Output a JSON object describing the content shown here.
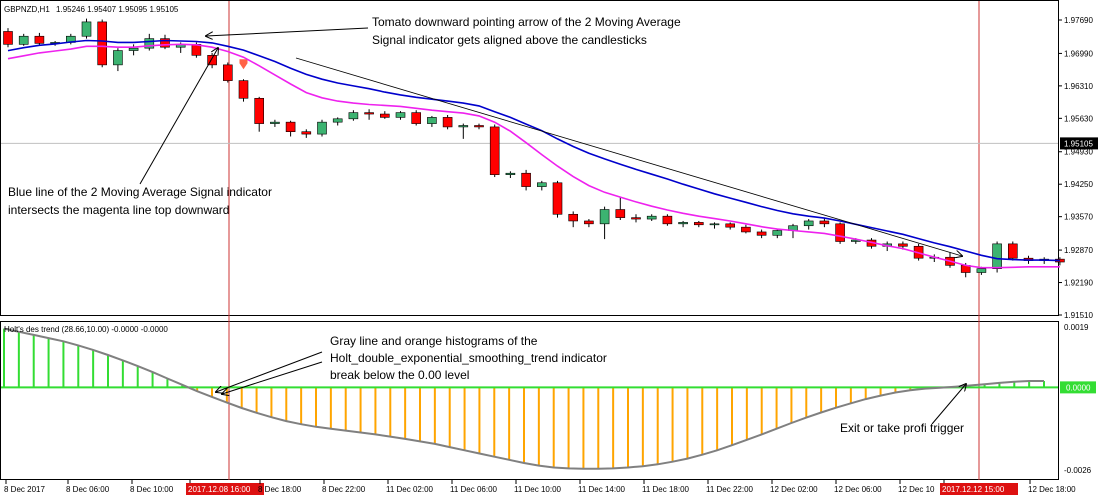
{
  "main_chart": {
    "symbol": "GBPNZD,H1",
    "ohlc_header": "1.95246 1.95407 1.95095 1.95105",
    "price_ticks": [
      "1.97690",
      "1.96990",
      "1.96310",
      "1.95630",
      "1.94930",
      "1.94250",
      "1.93570",
      "1.92870",
      "1.92190",
      "1.91510"
    ],
    "current_price": "1.95105",
    "colors": {
      "bull": "#3cb371",
      "bear": "#ff0000",
      "blue_ma": "#0000cc",
      "magenta_ma": "#ee22ee",
      "arrow": "#ff6347"
    }
  },
  "sub_chart": {
    "name": "Holt's des trend (28.66,10.00) -0.0000 -0.0000",
    "value_ticks": [
      "0.0019",
      "0.0000",
      "-0.0026"
    ],
    "colors": {
      "gray_line": "#808080",
      "positive_hist": "#33dd33",
      "negative_hist": "#ffa500",
      "zero_line": "#33dd33"
    }
  },
  "time_axis": {
    "labels": [
      "8 Dec 2017",
      "8 Dec 06:00",
      "8 Dec 10:00",
      "2017.12.08 16:00",
      "8 Dec 18:00",
      "8 Dec 22:00",
      "11 Dec 02:00",
      "11 Dec 06:00",
      "11 Dec 10:00",
      "11 Dec 14:00",
      "11 Dec 18:00",
      "11 Dec 22:00",
      "12 Dec 02:00",
      "12 Dec 06:00",
      "12 Dec 10",
      "2017.12.12 15:00",
      "12 Dec 18:00"
    ],
    "highlighted": [
      "2017.12.08 16:00",
      "2017.12.12 15:00"
    ]
  },
  "annotations": [
    {
      "lines": [
        "Tomato downward pointing arrow of the 2 Moving Average",
        "Signal indicator gets aligned above the candlesticks"
      ]
    },
    {
      "lines": [
        "Blue line of the 2 Moving Average Signal indicator",
        "intersects the magenta line top downward"
      ]
    },
    {
      "lines": [
        "Gray line and orange histograms of the",
        "Holt_double_exponential_smoothing_trend indicator",
        "break below the 0.00 level"
      ]
    },
    {
      "lines": [
        "Exit or take profi trigger"
      ]
    }
  ],
  "chart_data": [
    {
      "type": "candlestick",
      "title": "GBPNZD,H1",
      "ylim": [
        1.9151,
        1.9769
      ],
      "series": [
        {
          "name": "candles",
          "values": [
            [
              1.9745,
              1.9752,
              1.9712,
              1.9718
            ],
            [
              1.9718,
              1.974,
              1.9715,
              1.9735
            ],
            [
              1.9735,
              1.9742,
              1.9715,
              1.972
            ],
            [
              1.972,
              1.9725,
              1.9715,
              1.9722
            ],
            [
              1.9722,
              1.974,
              1.9718,
              1.9735
            ],
            [
              1.9735,
              1.9772,
              1.973,
              1.9765
            ],
            [
              1.9765,
              1.977,
              1.967,
              1.9675
            ],
            [
              1.9675,
              1.971,
              1.9662,
              1.9705
            ],
            [
              1.9705,
              1.9718,
              1.9695,
              1.971
            ],
            [
              1.971,
              1.974,
              1.9705,
              1.973
            ],
            [
              1.973,
              1.9738,
              1.9708,
              1.9712
            ],
            [
              1.9712,
              1.9722,
              1.97,
              1.9718
            ],
            [
              1.9718,
              1.9722,
              1.969,
              1.9695
            ],
            [
              1.9695,
              1.97,
              1.9668,
              1.9675
            ],
            [
              1.9675,
              1.968,
              1.9638,
              1.9642
            ],
            [
              1.9642,
              1.9645,
              1.9598,
              1.9605
            ],
            [
              1.9605,
              1.9608,
              1.9535,
              1.9552
            ],
            [
              1.9552,
              1.956,
              1.9545,
              1.9555
            ],
            [
              1.9555,
              1.9558,
              1.9525,
              1.9535
            ],
            [
              1.9535,
              1.954,
              1.9522,
              1.953
            ],
            [
              1.953,
              1.956,
              1.9525,
              1.9555
            ],
            [
              1.9555,
              1.9565,
              1.9548,
              1.9562
            ],
            [
              1.9562,
              1.958,
              1.9558,
              1.9575
            ],
            [
              1.9575,
              1.9582,
              1.956,
              1.9572
            ],
            [
              1.9572,
              1.9578,
              1.9562,
              1.9565
            ],
            [
              1.9565,
              1.9578,
              1.956,
              1.9575
            ],
            [
              1.9575,
              1.958,
              1.9548,
              1.9552
            ],
            [
              1.9552,
              1.9568,
              1.9545,
              1.9565
            ],
            [
              1.9565,
              1.957,
              1.954,
              1.9545
            ],
            [
              1.9545,
              1.9552,
              1.952,
              1.9548
            ],
            [
              1.9548,
              1.9552,
              1.954,
              1.9545
            ],
            [
              1.9545,
              1.955,
              1.944,
              1.9445
            ],
            [
              1.9445,
              1.9452,
              1.9438,
              1.9448
            ],
            [
              1.9448,
              1.9455,
              1.9412,
              1.942
            ],
            [
              1.942,
              1.9432,
              1.9412,
              1.9428
            ],
            [
              1.9428,
              1.9432,
              1.9355,
              1.9362
            ],
            [
              1.9362,
              1.9368,
              1.9335,
              1.9348
            ],
            [
              1.9348,
              1.9352,
              1.9335,
              1.9342
            ],
            [
              1.9342,
              1.9378,
              1.931,
              1.9372
            ],
            [
              1.9372,
              1.9398,
              1.935,
              1.9355
            ],
            [
              1.9355,
              1.9362,
              1.9345,
              1.9352
            ],
            [
              1.9352,
              1.9362,
              1.9348,
              1.9358
            ],
            [
              1.9358,
              1.9362,
              1.9338,
              1.9342
            ],
            [
              1.9342,
              1.9348,
              1.9335,
              1.9345
            ],
            [
              1.9345,
              1.9348,
              1.9335,
              1.934
            ],
            [
              1.934,
              1.9345,
              1.9332,
              1.9342
            ],
            [
              1.9342,
              1.9345,
              1.933,
              1.9335
            ],
            [
              1.9335,
              1.934,
              1.9322,
              1.9325
            ],
            [
              1.9325,
              1.933,
              1.9312,
              1.9318
            ],
            [
              1.9318,
              1.9332,
              1.9312,
              1.9328
            ],
            [
              1.9328,
              1.9342,
              1.9312,
              1.9338
            ],
            [
              1.9338,
              1.9352,
              1.933,
              1.9348
            ],
            [
              1.9348,
              1.9355,
              1.9335,
              1.9342
            ],
            [
              1.9342,
              1.9345,
              1.93,
              1.9305
            ],
            [
              1.9305,
              1.9312,
              1.93,
              1.9308
            ],
            [
              1.9308,
              1.9312,
              1.929,
              1.9295
            ],
            [
              1.9295,
              1.9305,
              1.9285,
              1.93
            ],
            [
              1.93,
              1.9305,
              1.9288,
              1.9295
            ],
            [
              1.9295,
              1.93,
              1.9265,
              1.927
            ],
            [
              1.927,
              1.9278,
              1.9262,
              1.9272
            ],
            [
              1.9272,
              1.9282,
              1.925,
              1.9255
            ],
            [
              1.9255,
              1.926,
              1.923,
              1.924
            ],
            [
              1.924,
              1.9252,
              1.9235,
              1.9248
            ],
            [
              1.9248,
              1.9305,
              1.924,
              1.93
            ],
            [
              1.93,
              1.9305,
              1.9265,
              1.927
            ],
            [
              1.927,
              1.9275,
              1.9258,
              1.9265
            ],
            [
              1.9265,
              1.9272,
              1.9258,
              1.9268
            ],
            [
              1.9268,
              1.9272,
              1.9255,
              1.9262
            ]
          ]
        },
        {
          "name": "blue_ma",
          "values": [
            1.9705,
            1.9711,
            1.9716,
            1.9719,
            1.9723,
            1.9726,
            1.9725,
            1.9722,
            1.9722,
            1.9724,
            1.9726,
            1.9725,
            1.9724,
            1.9721,
            1.9714,
            1.9706,
            1.9694,
            1.9682,
            1.9668,
            1.9655,
            1.9645,
            1.9637,
            1.9631,
            1.9625,
            1.9618,
            1.9612,
            1.9607,
            1.9603,
            1.9599,
            1.9595,
            1.9589,
            1.9577,
            1.9565,
            1.9551,
            1.9537,
            1.952,
            1.9504,
            1.949,
            1.9478,
            1.9467,
            1.9456,
            1.9446,
            1.9436,
            1.9425,
            1.9415,
            1.9405,
            1.9396,
            1.9387,
            1.9378,
            1.937,
            1.9363,
            1.9358,
            1.9354,
            1.9348,
            1.9341,
            1.9334,
            1.9327,
            1.932,
            1.9311,
            1.9302,
            1.9294,
            1.9285,
            1.9276,
            1.9269,
            1.9267,
            1.9266,
            1.9266,
            1.9265
          ]
        },
        {
          "name": "magenta_ma",
          "values": [
            1.9688,
            1.9694,
            1.97,
            1.9704,
            1.9708,
            1.9714,
            1.9714,
            1.9712,
            1.9712,
            1.9715,
            1.9717,
            1.9718,
            1.9717,
            1.9712,
            1.9703,
            1.9691,
            1.9673,
            1.9654,
            1.9635,
            1.9617,
            1.9606,
            1.9599,
            1.9595,
            1.9592,
            1.959,
            1.9588,
            1.9584,
            1.958,
            1.9577,
            1.9574,
            1.9568,
            1.9555,
            1.9536,
            1.9512,
            1.9487,
            1.9463,
            1.9441,
            1.9422,
            1.9408,
            1.9398,
            1.9388,
            1.9379,
            1.9371,
            1.9364,
            1.9358,
            1.9353,
            1.9348,
            1.9342,
            1.9336,
            1.9331,
            1.9328,
            1.9325,
            1.9322,
            1.9316,
            1.931,
            1.9303,
            1.9296,
            1.929,
            1.9281,
            1.9272,
            1.9264,
            1.9255,
            1.925,
            1.925,
            1.9251,
            1.9252,
            1.9252,
            1.9252
          ]
        }
      ],
      "signal_arrow_bar": 15,
      "price_line": 1.95105
    },
    {
      "type": "bar",
      "title": "Holt's des trend (28.66,10.00) -0.0000 -0.0000",
      "ylim": [
        -0.0026,
        0.0019
      ],
      "series": [
        {
          "name": "gray_line",
          "values": [
            0.00185,
            0.00175,
            0.00165,
            0.00155,
            0.00145,
            0.00132,
            0.00118,
            0.00102,
            0.00085,
            0.00067,
            0.00048,
            0.00028,
            8e-05,
            -0.00012,
            -0.0003,
            -0.00048,
            -0.00065,
            -0.0008,
            -0.00094,
            -0.00106,
            -0.00116,
            -0.00124,
            -0.0013,
            -0.00136,
            -0.00142,
            -0.00148,
            -0.00155,
            -0.00162,
            -0.0017,
            -0.00178,
            -0.00188,
            -0.00198,
            -0.00208,
            -0.00218,
            -0.00228,
            -0.00238,
            -0.00246,
            -0.00252,
            -0.00255,
            -0.00256,
            -0.00256,
            -0.00255,
            -0.00252,
            -0.00248,
            -0.00242,
            -0.00234,
            -0.00224,
            -0.00212,
            -0.00198,
            -0.00182,
            -0.00165,
            -0.00148,
            -0.0013,
            -0.00112,
            -0.00095,
            -0.00079,
            -0.00064,
            -0.0005,
            -0.00037,
            -0.00026,
            -0.00016,
            -9e-05,
            -4e-05,
            -1e-05,
            2e-05,
            6e-05,
            0.0001,
            0.00014,
            0.00018,
            0.0002,
            0.0002
          ]
        }
      ],
      "zero_line": 0
    }
  ]
}
